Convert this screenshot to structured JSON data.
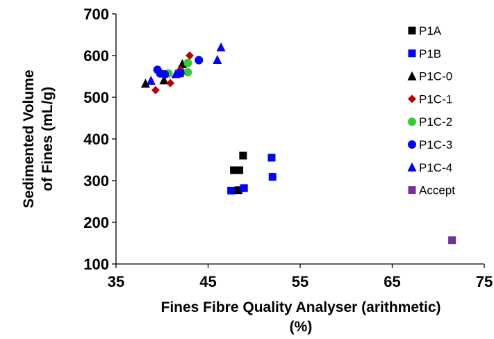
{
  "chart_data": {
    "type": "scatter",
    "title": "",
    "xlabel_line1": "Fines Fibre Quality Analyser (arithmetic)",
    "xlabel_line2": "(%)",
    "ylabel_line1": "Sedimented Volume",
    "ylabel_line2": "of Fines (mL/g)",
    "xlim": [
      35,
      75
    ],
    "ylim": [
      100,
      700
    ],
    "xticks": [
      35,
      45,
      55,
      65,
      75
    ],
    "yticks": [
      100,
      200,
      300,
      400,
      500,
      600,
      700
    ],
    "grid": false,
    "legend_position": "right",
    "series": [
      {
        "name": "P1A",
        "marker": "square",
        "color": "#000000",
        "points": [
          [
            47.8,
            325
          ],
          [
            48.4,
            325
          ],
          [
            48.8,
            360
          ],
          [
            48.3,
            277
          ]
        ]
      },
      {
        "name": "P1B",
        "marker": "square",
        "color": "#0000FF",
        "points": [
          [
            47.5,
            276
          ],
          [
            48.9,
            282
          ],
          [
            51.9,
            355
          ],
          [
            52.0,
            309
          ]
        ]
      },
      {
        "name": "P1C-0",
        "marker": "triangle",
        "color": "#000000",
        "points": [
          [
            38.2,
            533
          ],
          [
            40.2,
            541
          ],
          [
            42.0,
            569
          ],
          [
            42.2,
            580
          ]
        ]
      },
      {
        "name": "P1C-1",
        "marker": "diamond",
        "color": "#C00000",
        "points": [
          [
            39.3,
            517
          ],
          [
            40.9,
            534
          ],
          [
            42.0,
            566
          ],
          [
            43.0,
            600
          ]
        ]
      },
      {
        "name": "P1C-2",
        "marker": "circle",
        "color": "#33CC33",
        "points": [
          [
            40.7,
            557
          ],
          [
            42.8,
            560
          ],
          [
            42.8,
            582
          ]
        ]
      },
      {
        "name": "P1C-3",
        "marker": "circle",
        "color": "#0000FF",
        "points": [
          [
            39.5,
            566
          ],
          [
            39.8,
            557
          ],
          [
            40.3,
            555
          ],
          [
            42.0,
            558
          ],
          [
            44.0,
            589
          ]
        ]
      },
      {
        "name": "P1C-4",
        "marker": "triangle",
        "color": "#0000FF",
        "points": [
          [
            38.8,
            540
          ],
          [
            41.5,
            556
          ],
          [
            41.9,
            558
          ],
          [
            46.0,
            590
          ],
          [
            46.4,
            620
          ]
        ]
      },
      {
        "name": "Accept",
        "marker": "square",
        "color": "#7030A0",
        "points": [
          [
            71.5,
            157
          ]
        ]
      }
    ]
  }
}
